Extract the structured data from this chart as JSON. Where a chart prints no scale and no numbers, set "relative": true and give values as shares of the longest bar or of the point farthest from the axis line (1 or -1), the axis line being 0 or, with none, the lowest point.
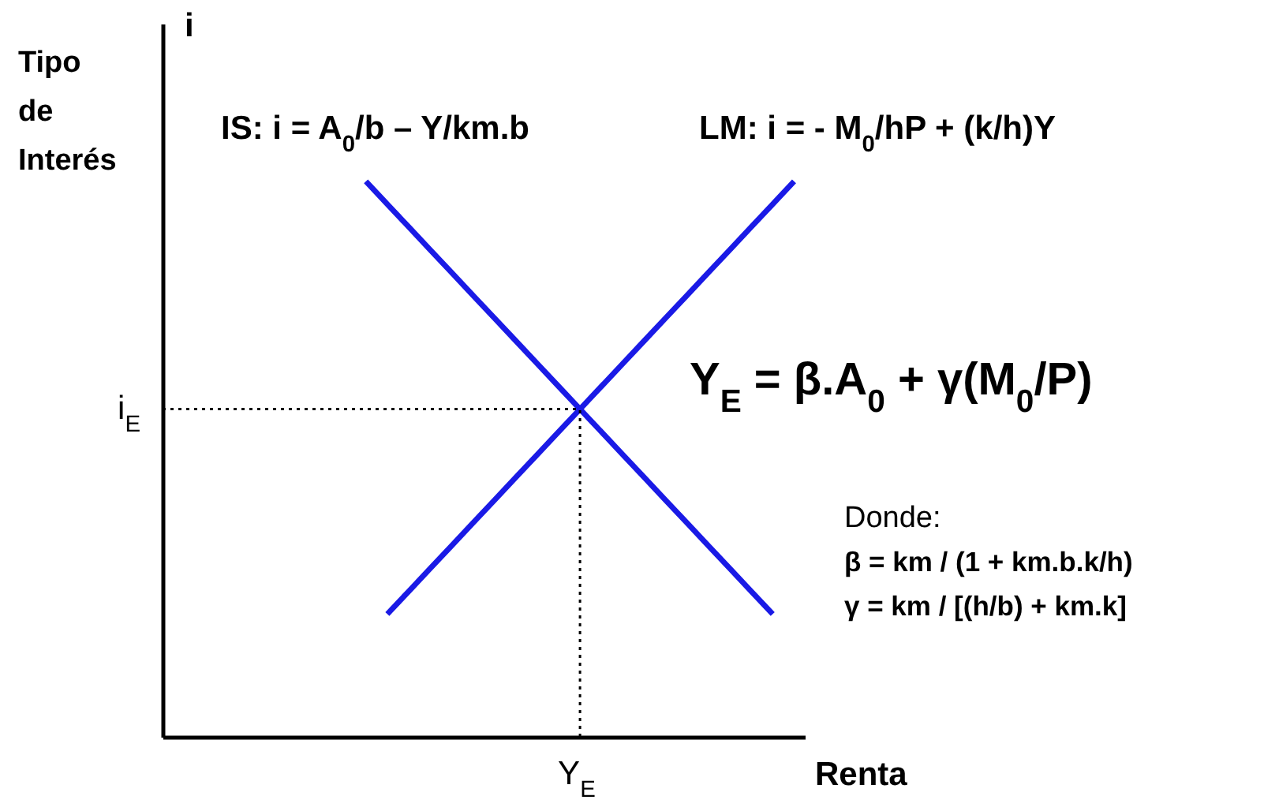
{
  "chart_data": {
    "type": "line",
    "relative": true,
    "xlabel": "Renta",
    "ylabel": "Tipo de Interés",
    "categories": [
      null,
      null,
      null,
      null,
      null,
      null,
      null,
      null,
      null,
      null,
      null,
      null,
      null,
      null,
      null,
      null,
      null,
      null,
      null,
      null,
      null,
      null,
      null,
      null,
      null,
      null,
      null,
      null,
      null,
      null
    ],
    "tick_labels": false,
    "grid": false,
    "marker": "none",
    "line_style": "solid",
    "series": [
      {
        "color": "#1a1ae6",
        "values": [
          null,
          null,
          null,
          null,
          null,
          null,
          null,
          null,
          null,
          1,
          0.959,
          0.918,
          0.877,
          0.836,
          0.795,
          0.754,
          0.713,
          0.672,
          0.631,
          0.59,
          0.549,
          0.508,
          0.467,
          0.426,
          0.385,
          0.344,
          0.303,
          0.262,
          0.221,
          null
        ]
      },
      {
        "color": "#1a1ae6",
        "values": [
          null,
          null,
          null,
          null,
          null,
          null,
          null,
          null,
          null,
          null,
          0.221,
          0.262,
          0.303,
          0.344,
          0.385,
          0.426,
          0.467,
          0.508,
          0.549,
          0.59,
          0.631,
          0.672,
          0.713,
          0.754,
          0.795,
          0.836,
          0.877,
          0.918,
          0.959,
          1
        ]
      }
    ],
    "ref_lines": [
      {
        "axis": "y",
        "value": 0.59,
        "label": "i$_{E}$",
        "line_style": "dotted",
        "color": "#000000"
      }
    ],
    "annotations": [
      "Y$_{E}$",
      "i",
      "IS: i = A$_{0}$/b – Y/km.b",
      "LM: i = - M$_{0}$/hP + (k/h)Y",
      "Y$_{E}$ = β.A$_{0}$ + γ(M$_{0}$/P)",
      "Donde:",
      "β = km / (1 + km.b.k/h)",
      "γ = km / [(h/b) + km.k]"
    ]
  }
}
